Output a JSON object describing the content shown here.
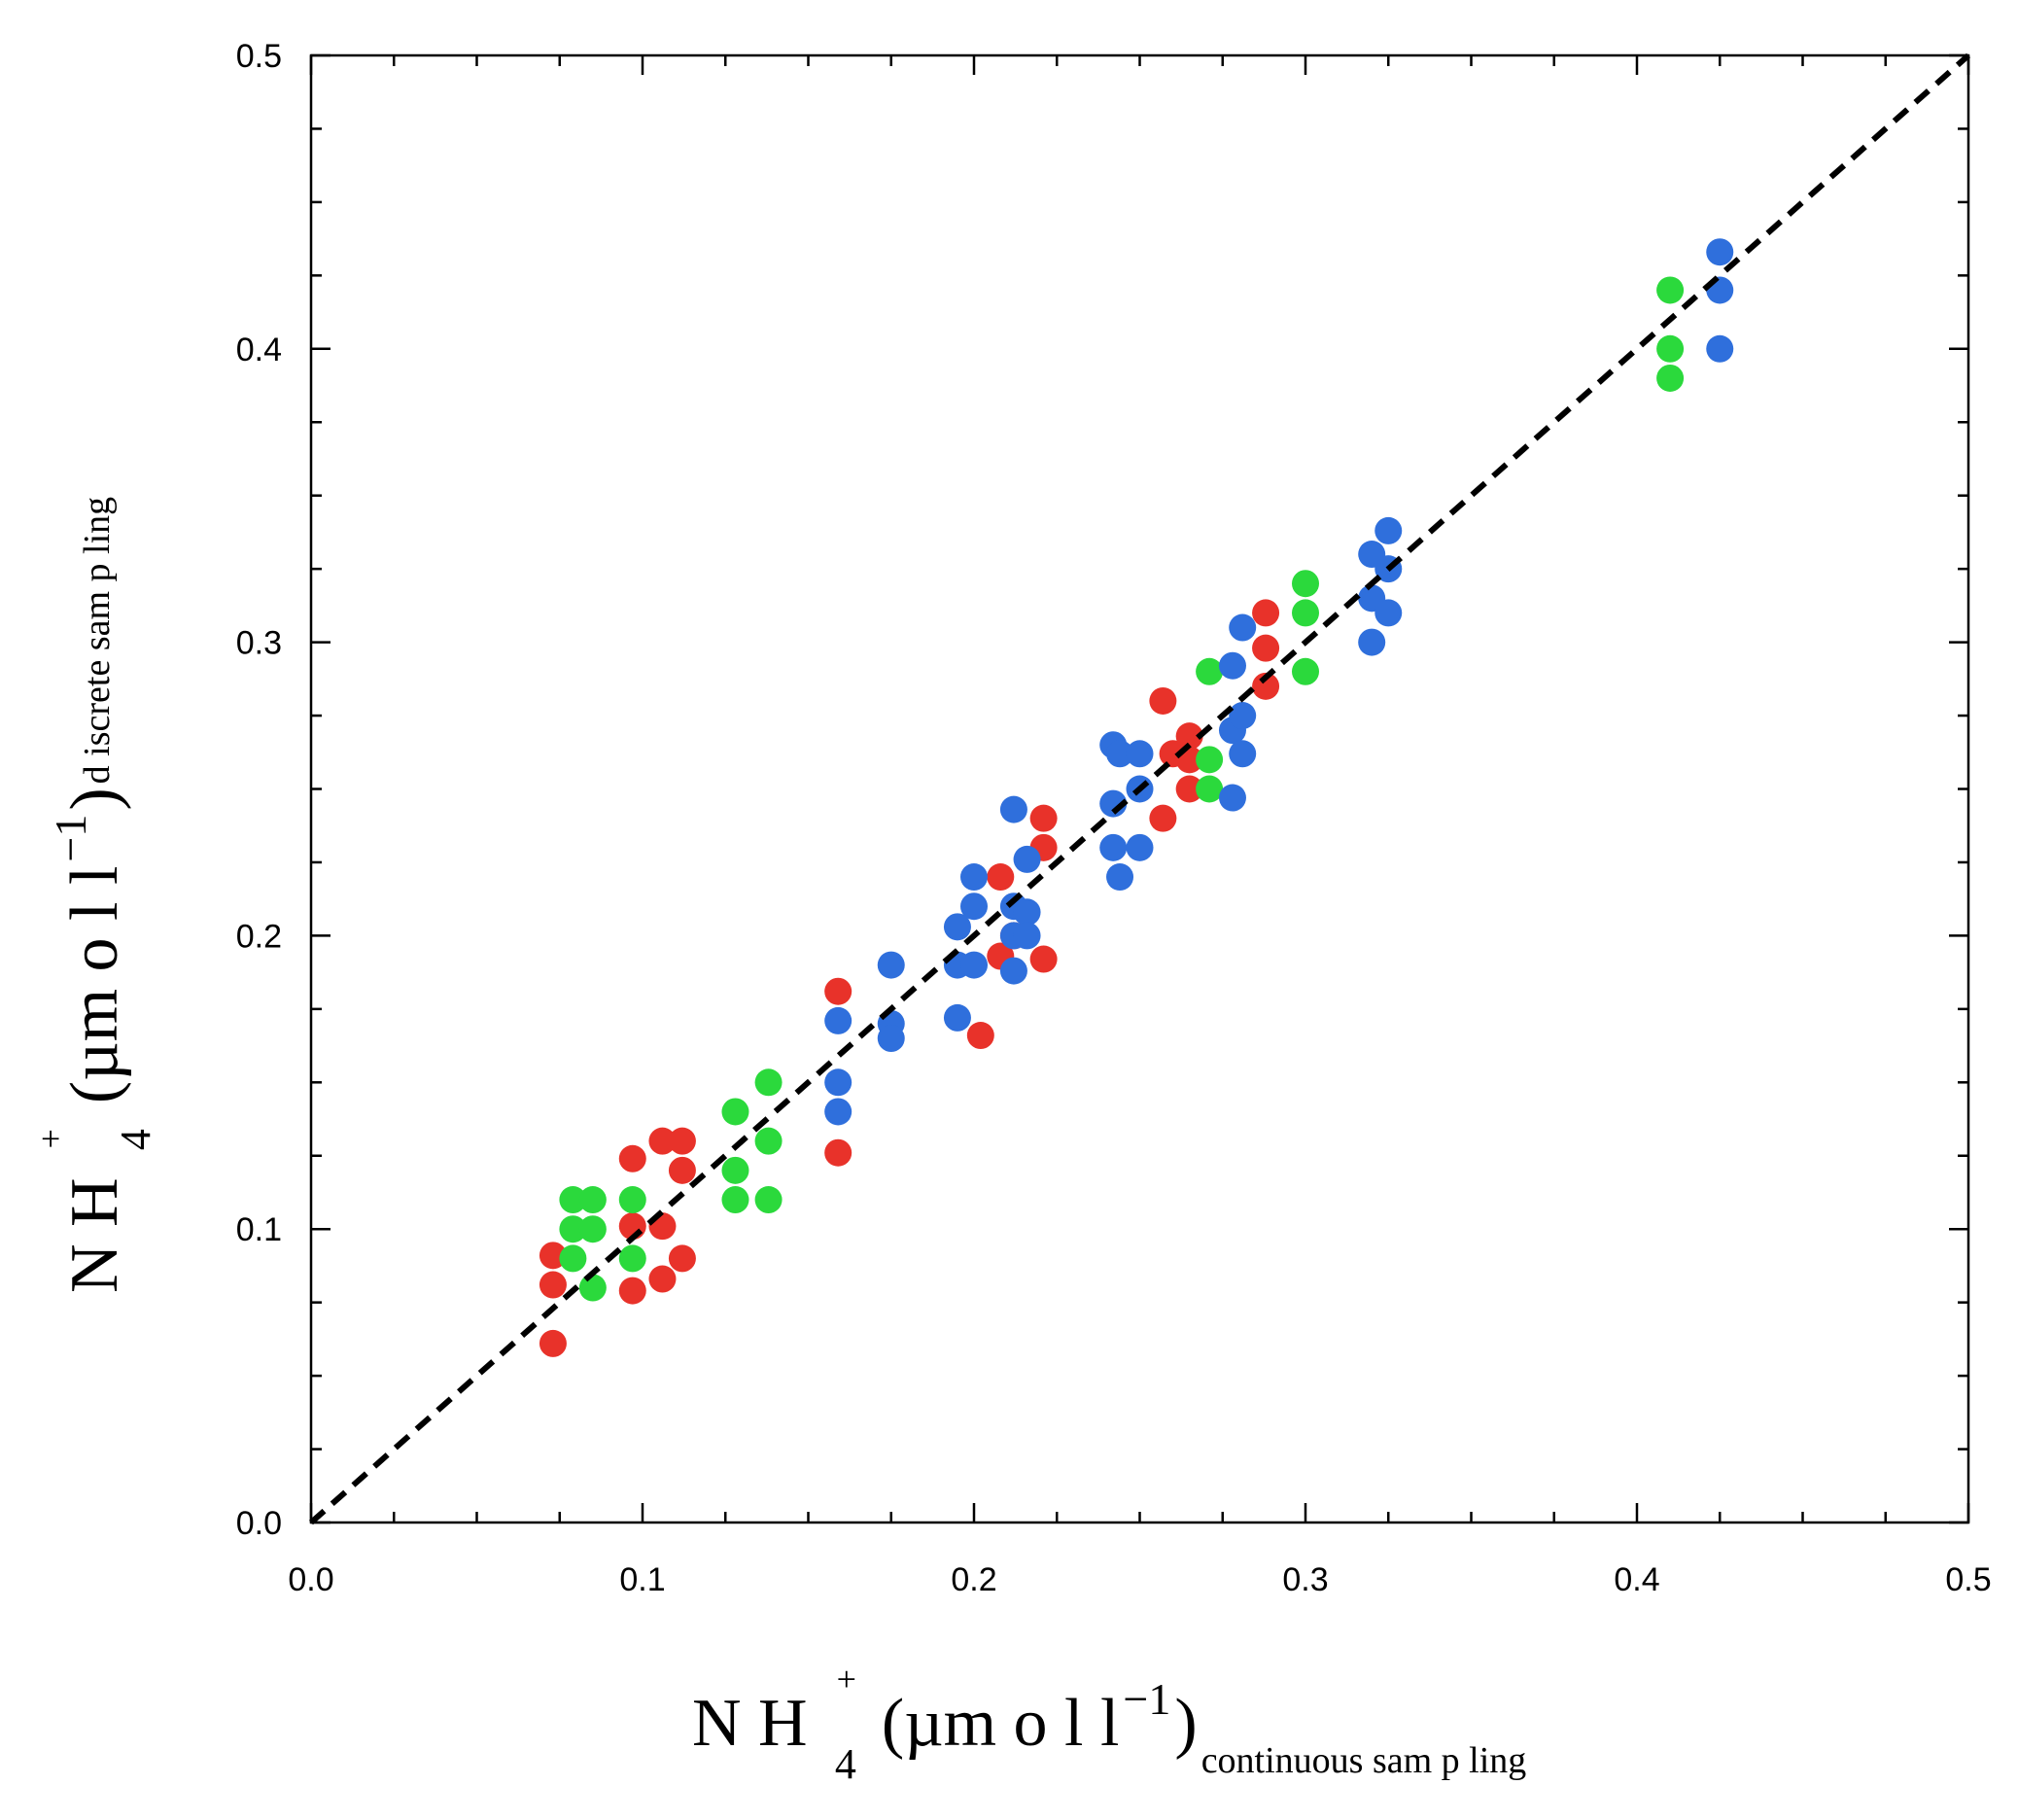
{
  "chart_data": {
    "type": "scatter",
    "title": "",
    "xlabel": {
      "main": "N H",
      "sup": "+",
      "sub": "4",
      "units": "(µm o l l",
      "units_sup": "−1",
      "close": ")",
      "suffix": "continuous sam p ling"
    },
    "ylabel": {
      "main": "N H",
      "sup": "+",
      "sub": "4",
      "units": "(µm o l l",
      "units_sup": "−1",
      "close": ")",
      "suffix": "d iscrete sam p ling"
    },
    "xlim": [
      0,
      0.5
    ],
    "ylim": [
      0,
      0.5
    ],
    "x_ticks": [
      "0.0",
      "0.1",
      "0.2",
      "0.3",
      "0.4",
      "0.5"
    ],
    "y_ticks": [
      "0.0",
      "0.1",
      "0.2",
      "0.3",
      "0.4",
      "0.5"
    ],
    "reference_line": {
      "type": "1:1",
      "style": "dashed",
      "color": "#000000",
      "from": [
        0,
        0
      ],
      "to": [
        0.5,
        0.5
      ]
    },
    "series": [
      {
        "name": "red",
        "color": "#e8322a",
        "points": [
          [
            0.073,
            0.091
          ],
          [
            0.073,
            0.081
          ],
          [
            0.073,
            0.061
          ],
          [
            0.097,
            0.124
          ],
          [
            0.097,
            0.101
          ],
          [
            0.097,
            0.079
          ],
          [
            0.106,
            0.13
          ],
          [
            0.106,
            0.101
          ],
          [
            0.106,
            0.083
          ],
          [
            0.112,
            0.13
          ],
          [
            0.112,
            0.12
          ],
          [
            0.112,
            0.09
          ],
          [
            0.159,
            0.181
          ],
          [
            0.159,
            0.126
          ],
          [
            0.202,
            0.166
          ],
          [
            0.208,
            0.193
          ],
          [
            0.208,
            0.22
          ],
          [
            0.212,
            0.2
          ],
          [
            0.221,
            0.24
          ],
          [
            0.221,
            0.23
          ],
          [
            0.221,
            0.192
          ],
          [
            0.257,
            0.28
          ],
          [
            0.257,
            0.24
          ],
          [
            0.26,
            0.262
          ],
          [
            0.265,
            0.268
          ],
          [
            0.265,
            0.26
          ],
          [
            0.265,
            0.25
          ],
          [
            0.288,
            0.31
          ],
          [
            0.288,
            0.298
          ],
          [
            0.288,
            0.285
          ]
        ]
      },
      {
        "name": "green",
        "color": "#2bd93c",
        "points": [
          [
            0.079,
            0.11
          ],
          [
            0.079,
            0.1
          ],
          [
            0.079,
            0.09
          ],
          [
            0.085,
            0.11
          ],
          [
            0.085,
            0.1
          ],
          [
            0.085,
            0.08
          ],
          [
            0.097,
            0.11
          ],
          [
            0.097,
            0.09
          ],
          [
            0.128,
            0.14
          ],
          [
            0.128,
            0.12
          ],
          [
            0.128,
            0.11
          ],
          [
            0.138,
            0.15
          ],
          [
            0.138,
            0.13
          ],
          [
            0.138,
            0.11
          ],
          [
            0.271,
            0.29
          ],
          [
            0.271,
            0.26
          ],
          [
            0.271,
            0.25
          ],
          [
            0.3,
            0.32
          ],
          [
            0.3,
            0.31
          ],
          [
            0.3,
            0.29
          ],
          [
            0.41,
            0.42
          ],
          [
            0.41,
            0.4
          ],
          [
            0.41,
            0.39
          ]
        ]
      },
      {
        "name": "blue",
        "color": "#2f6fdc",
        "points": [
          [
            0.159,
            0.171
          ],
          [
            0.159,
            0.15
          ],
          [
            0.159,
            0.14
          ],
          [
            0.175,
            0.19
          ],
          [
            0.175,
            0.17
          ],
          [
            0.175,
            0.165
          ],
          [
            0.195,
            0.203
          ],
          [
            0.195,
            0.19
          ],
          [
            0.195,
            0.172
          ],
          [
            0.2,
            0.22
          ],
          [
            0.2,
            0.21
          ],
          [
            0.2,
            0.19
          ],
          [
            0.212,
            0.243
          ],
          [
            0.212,
            0.21
          ],
          [
            0.212,
            0.2
          ],
          [
            0.212,
            0.188
          ],
          [
            0.216,
            0.226
          ],
          [
            0.216,
            0.208
          ],
          [
            0.216,
            0.2
          ],
          [
            0.242,
            0.265
          ],
          [
            0.242,
            0.245
          ],
          [
            0.242,
            0.23
          ],
          [
            0.244,
            0.262
          ],
          [
            0.244,
            0.22
          ],
          [
            0.25,
            0.262
          ],
          [
            0.25,
            0.25
          ],
          [
            0.25,
            0.23
          ],
          [
            0.278,
            0.292
          ],
          [
            0.278,
            0.27
          ],
          [
            0.278,
            0.247
          ],
          [
            0.281,
            0.305
          ],
          [
            0.281,
            0.275
          ],
          [
            0.281,
            0.262
          ],
          [
            0.32,
            0.33
          ],
          [
            0.32,
            0.315
          ],
          [
            0.32,
            0.3
          ],
          [
            0.325,
            0.338
          ],
          [
            0.325,
            0.325
          ],
          [
            0.325,
            0.31
          ],
          [
            0.425,
            0.433
          ],
          [
            0.425,
            0.42
          ],
          [
            0.425,
            0.4
          ]
        ]
      }
    ]
  }
}
